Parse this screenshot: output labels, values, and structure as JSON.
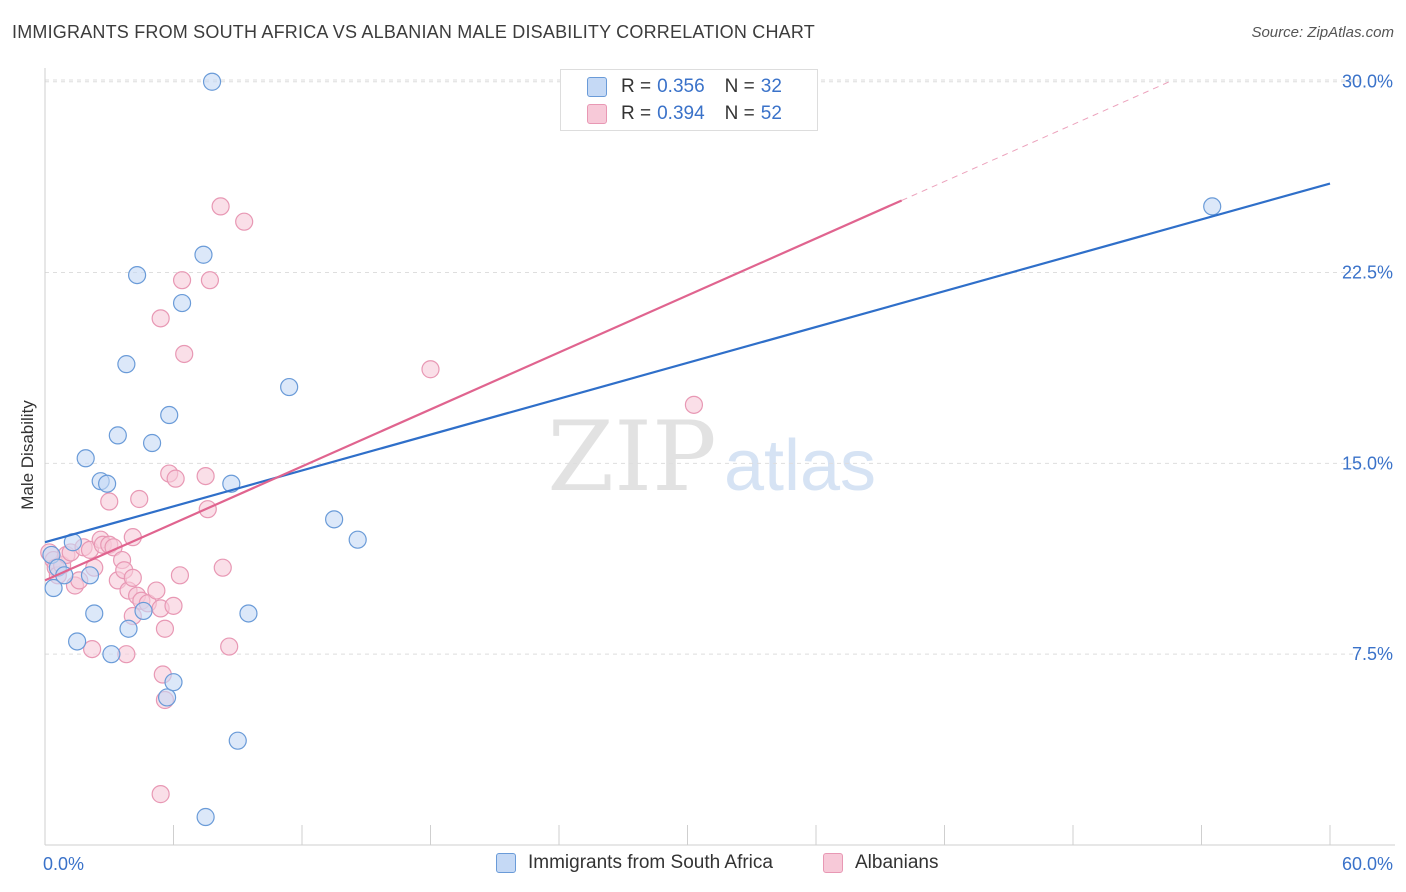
{
  "title": "IMMIGRANTS FROM SOUTH AFRICA VS ALBANIAN MALE DISABILITY CORRELATION CHART",
  "source": "Source: ZipAtlas.com",
  "watermark": {
    "zip": "ZIP",
    "atlas": "atlas"
  },
  "colors": {
    "blue_fill": "#c5d9f5",
    "blue_stroke": "#6a9bd8",
    "blue_line": "#2f6fc9",
    "pink_fill": "#f7c9d8",
    "pink_stroke": "#e898b4",
    "pink_line": "#e0648f",
    "tick_label": "#3a72c9",
    "grid": "#dedede"
  },
  "legend": {
    "series1": {
      "r_label": "R = ",
      "r_value": "0.356",
      "n_label": "N = ",
      "n_value": "32"
    },
    "series2": {
      "r_label": "R = ",
      "r_value": "0.394",
      "n_label": "N = ",
      "n_value": "52"
    }
  },
  "bottom_legend": {
    "series1": "Immigrants from South Africa",
    "series2": "Albanians"
  },
  "chart_data": {
    "type": "scatter",
    "title": "IMMIGRANTS FROM SOUTH AFRICA VS ALBANIAN MALE DISABILITY CORRELATION CHART",
    "xlabel": "",
    "ylabel": "Male Disability",
    "xlim": [
      0,
      60
    ],
    "ylim": [
      0,
      31
    ],
    "x_tick_labels": [
      "0.0%",
      "60.0%"
    ],
    "y_ticks": [
      7.5,
      15.0,
      22.5,
      30.0
    ],
    "y_tick_labels": [
      "7.5%",
      "15.0%",
      "22.5%",
      "30.0%"
    ],
    "grid": true,
    "series": [
      {
        "name": "Immigrants from South Africa",
        "color": "#6a9bd8",
        "trend": {
          "x0": 0,
          "y0": 11.9,
          "x1": 60,
          "y1": 26.0,
          "dashed_from": null
        },
        "points": [
          [
            0.3,
            11.4
          ],
          [
            0.4,
            10.1
          ],
          [
            0.6,
            10.9
          ],
          [
            0.9,
            10.6
          ],
          [
            1.3,
            11.9
          ],
          [
            2.1,
            10.6
          ],
          [
            2.3,
            9.1
          ],
          [
            1.5,
            8.0
          ],
          [
            3.1,
            7.5
          ],
          [
            3.9,
            8.5
          ],
          [
            4.6,
            9.2
          ],
          [
            1.9,
            15.2
          ],
          [
            2.6,
            14.3
          ],
          [
            2.9,
            14.2
          ],
          [
            3.4,
            16.1
          ],
          [
            5.0,
            15.8
          ],
          [
            5.8,
            16.9
          ],
          [
            3.8,
            18.9
          ],
          [
            4.3,
            22.4
          ],
          [
            6.4,
            21.3
          ],
          [
            7.4,
            23.2
          ],
          [
            7.8,
            30.0
          ],
          [
            8.7,
            14.2
          ],
          [
            9.5,
            9.1
          ],
          [
            11.4,
            18.0
          ],
          [
            13.5,
            12.8
          ],
          [
            14.6,
            12.0
          ],
          [
            5.7,
            5.8
          ],
          [
            6.0,
            6.4
          ],
          [
            9.0,
            4.1
          ],
          [
            7.5,
            1.1
          ],
          [
            54.5,
            25.1
          ]
        ]
      },
      {
        "name": "Albanians",
        "color": "#e898b4",
        "trend": {
          "x0": 0,
          "y0": 10.4,
          "x1": 52.5,
          "y1": 30.0,
          "dashed_from": 40.0
        },
        "points": [
          [
            0.2,
            11.5
          ],
          [
            0.4,
            11.2
          ],
          [
            0.5,
            10.9
          ],
          [
            0.6,
            10.6
          ],
          [
            0.8,
            11.0
          ],
          [
            1.0,
            11.4
          ],
          [
            1.2,
            11.5
          ],
          [
            1.4,
            10.2
          ],
          [
            1.6,
            10.4
          ],
          [
            1.8,
            11.7
          ],
          [
            2.1,
            11.6
          ],
          [
            2.3,
            10.9
          ],
          [
            2.6,
            12.0
          ],
          [
            2.7,
            11.8
          ],
          [
            3.0,
            11.8
          ],
          [
            3.2,
            11.7
          ],
          [
            3.4,
            10.4
          ],
          [
            3.6,
            11.2
          ],
          [
            3.7,
            10.8
          ],
          [
            3.9,
            10.0
          ],
          [
            4.1,
            10.5
          ],
          [
            4.3,
            9.8
          ],
          [
            4.5,
            9.6
          ],
          [
            4.8,
            9.5
          ],
          [
            5.2,
            10.0
          ],
          [
            5.4,
            9.3
          ],
          [
            5.6,
            8.5
          ],
          [
            6.0,
            9.4
          ],
          [
            6.3,
            10.6
          ],
          [
            2.2,
            7.7
          ],
          [
            3.8,
            7.5
          ],
          [
            4.1,
            9.0
          ],
          [
            5.5,
            6.7
          ],
          [
            5.6,
            5.7
          ],
          [
            8.6,
            7.8
          ],
          [
            5.4,
            2.0
          ],
          [
            3.0,
            13.5
          ],
          [
            4.4,
            13.6
          ],
          [
            5.8,
            14.6
          ],
          [
            6.1,
            14.4
          ],
          [
            7.5,
            14.5
          ],
          [
            7.6,
            13.2
          ],
          [
            8.3,
            10.9
          ],
          [
            8.2,
            25.1
          ],
          [
            9.3,
            24.5
          ],
          [
            6.4,
            22.2
          ],
          [
            7.7,
            22.2
          ],
          [
            5.4,
            20.7
          ],
          [
            6.5,
            19.3
          ],
          [
            18.0,
            18.7
          ],
          [
            30.3,
            17.3
          ],
          [
            4.1,
            12.1
          ]
        ]
      }
    ]
  }
}
